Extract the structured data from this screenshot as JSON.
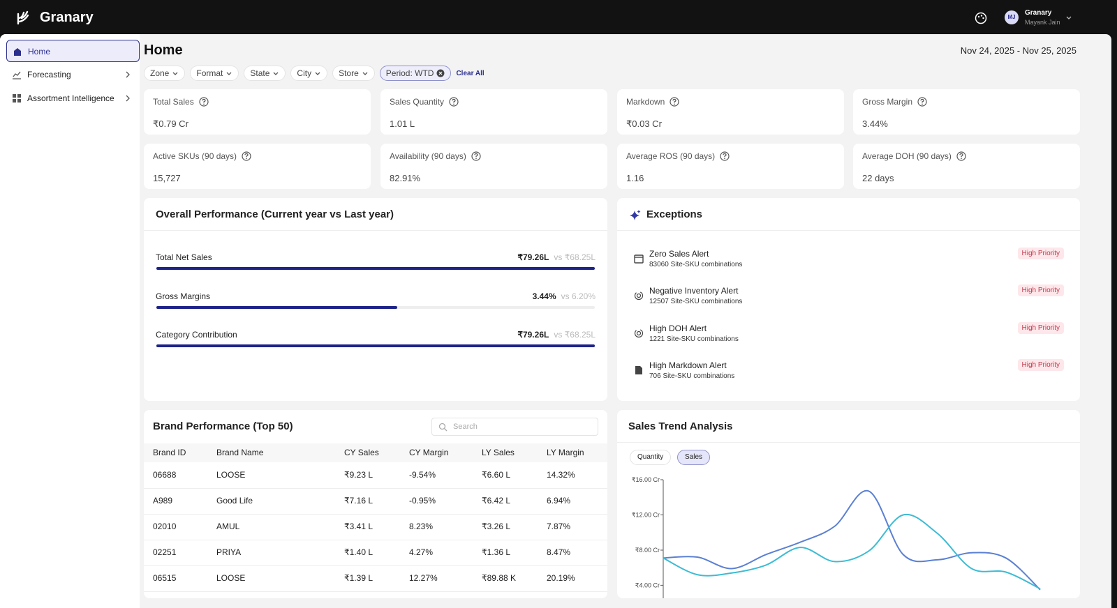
{
  "header": {
    "brand": "Granary",
    "avatar": "MJ",
    "org": "Granary",
    "user": "Mayank Jain"
  },
  "sidebar": {
    "items": [
      "Home",
      "Forecasting",
      "Assortment Intelligence"
    ]
  },
  "page": {
    "title": "Home",
    "date_range": "Nov 24, 2025 - Nov 25, 2025"
  },
  "filters": {
    "items": [
      "Zone",
      "Format",
      "State",
      "City",
      "Store"
    ],
    "period": "Period: WTD",
    "clear": "Clear All"
  },
  "kpis": [
    {
      "label": "Total Sales",
      "value": "₹0.79 Cr"
    },
    {
      "label": "Sales Quantity",
      "value": "1.01 L"
    },
    {
      "label": "Markdown",
      "value": "₹0.03 Cr"
    },
    {
      "label": "Gross Margin",
      "value": "3.44%"
    },
    {
      "label": "Active SKUs (90 days)",
      "value": "15,727"
    },
    {
      "label": "Availability (90 days)",
      "value": "82.91%"
    },
    {
      "label": "Average ROS (90 days)",
      "value": "1.16"
    },
    {
      "label": "Average DOH (90 days)",
      "value": "22 days"
    }
  ],
  "performance": {
    "title": "Overall Performance (Current year vs Last year)",
    "rows": [
      {
        "label": "Total Net Sales",
        "current": "₹79.26L",
        "previous": "vs ₹68.25L",
        "progress": 100
      },
      {
        "label": "Gross Margins",
        "current": "3.44%",
        "previous": "vs 6.20%",
        "progress": 55
      },
      {
        "label": "Category Contribution",
        "current": "₹79.26L",
        "previous": "vs ₹68.25L",
        "progress": 100
      }
    ]
  },
  "exceptions": {
    "title": "Exceptions",
    "items": [
      {
        "title": "Zero Sales Alert",
        "detail": "83060 Site-SKU combinations",
        "priority": "High Priority"
      },
      {
        "title": "Negative Inventory Alert",
        "detail": "12507 Site-SKU combinations",
        "priority": "High Priority"
      },
      {
        "title": "High DOH Alert",
        "detail": "1221 Site-SKU combinations",
        "priority": "High Priority"
      },
      {
        "title": "High Markdown Alert",
        "detail": "706 Site-SKU combinations",
        "priority": "High Priority"
      }
    ]
  },
  "brands": {
    "title": "Brand Performance (Top 50)",
    "search": "Search",
    "columns": [
      "Brand ID",
      "Brand Name",
      "CY Sales",
      "CY Margin",
      "LY Sales",
      "LY Margin"
    ],
    "rows": [
      [
        "06688",
        "LOOSE",
        "₹9.23 L",
        "-9.54%",
        "₹6.60 L",
        "14.32%"
      ],
      [
        "A989",
        "Good Life",
        "₹7.16 L",
        "-0.95%",
        "₹6.42 L",
        "6.94%"
      ],
      [
        "02010",
        "AMUL",
        "₹3.41 L",
        "8.23%",
        "₹3.26 L",
        "7.87%"
      ],
      [
        "02251",
        "PRIYA",
        "₹1.40 L",
        "4.27%",
        "₹1.36 L",
        "8.47%"
      ],
      [
        "06515",
        "LOOSE",
        "₹1.39 L",
        "12.27%",
        "₹89.88 K",
        "20.19%"
      ]
    ]
  },
  "sales_trend": {
    "title": "Sales Trend Analysis",
    "toggles": [
      "Quantity",
      "Sales"
    ]
  },
  "chart_data": {
    "type": "line",
    "categories": [
      null,
      null,
      null,
      null,
      null,
      null,
      null,
      null,
      null,
      null,
      null,
      null
    ],
    "series": [
      {
        "color": "#5b80d3",
        "values": [
          7.1,
          7.2,
          5.9,
          7.5,
          8.9,
          10.7,
          14.7,
          7.5,
          6.9,
          7.7,
          7.1,
          3.5
        ]
      },
      {
        "color": "#3cbcd4",
        "values": [
          7.1,
          5.2,
          5.4,
          6.3,
          8.3,
          6.7,
          7.9,
          12.0,
          9.9,
          5.9,
          5.5,
          3.6
        ]
      }
    ],
    "ylim": [
      3.4,
      16
    ],
    "yticks": [
      {
        "value": 4,
        "label": "₹4.00 Cr"
      },
      {
        "value": 8,
        "label": "₹8.00 Cr"
      },
      {
        "value": 12,
        "label": "₹12.00 Cr"
      },
      {
        "value": 16,
        "label": "₹16.00 Cr"
      }
    ]
  }
}
